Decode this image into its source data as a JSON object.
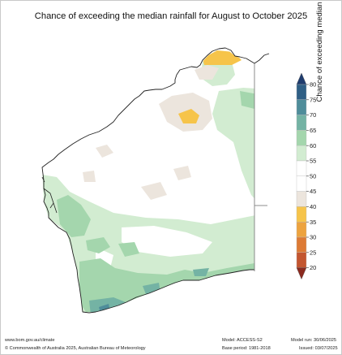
{
  "title": "Chance of exceeding the median rainfall for August to October 2025",
  "legend": {
    "axis_label": "Chance of exceeding median rainfall (%)",
    "ticks": [
      "80",
      "75",
      "70",
      "65",
      "60",
      "55",
      "50",
      "45",
      "40",
      "35",
      "30",
      "25",
      "20"
    ],
    "bands": [
      {
        "range": "75-80",
        "color": "#2f5f85"
      },
      {
        "range": "70-75",
        "color": "#4f8d9a"
      },
      {
        "range": "65-70",
        "color": "#74b3a4"
      },
      {
        "range": "60-65",
        "color": "#a4d6ad"
      },
      {
        "range": "55-60",
        "color": "#d2ecd1"
      },
      {
        "range": "50-55",
        "color": "#ffffff"
      },
      {
        "range": "45-50",
        "color": "#ffffff"
      },
      {
        "range": "40-45",
        "color": "#ece5dd"
      },
      {
        "range": "35-40",
        "color": "#f6c44a"
      },
      {
        "range": "30-35",
        "color": "#eda33f"
      },
      {
        "range": "25-30",
        "color": "#dd7a35"
      },
      {
        "range": "20-25",
        "color": "#c35630"
      }
    ],
    "top_arrow_color": "#1f3c6e",
    "bottom_arrow_color": "#8b2a1f"
  },
  "colors": {
    "land": "#ffffff",
    "coast": "#222222",
    "border": "#7f7f7f"
  },
  "footer": {
    "website": "www.bom.gov.au/climate",
    "copyright": "© Commonwealth of Australia 2025, Australian Bureau of Meteorology",
    "model": "Model: ACCESS-S2",
    "base_period": "Base period: 1981-2018",
    "model_run": "Model run: 30/06/2025",
    "issued": "Issued: 03/07/2025"
  }
}
